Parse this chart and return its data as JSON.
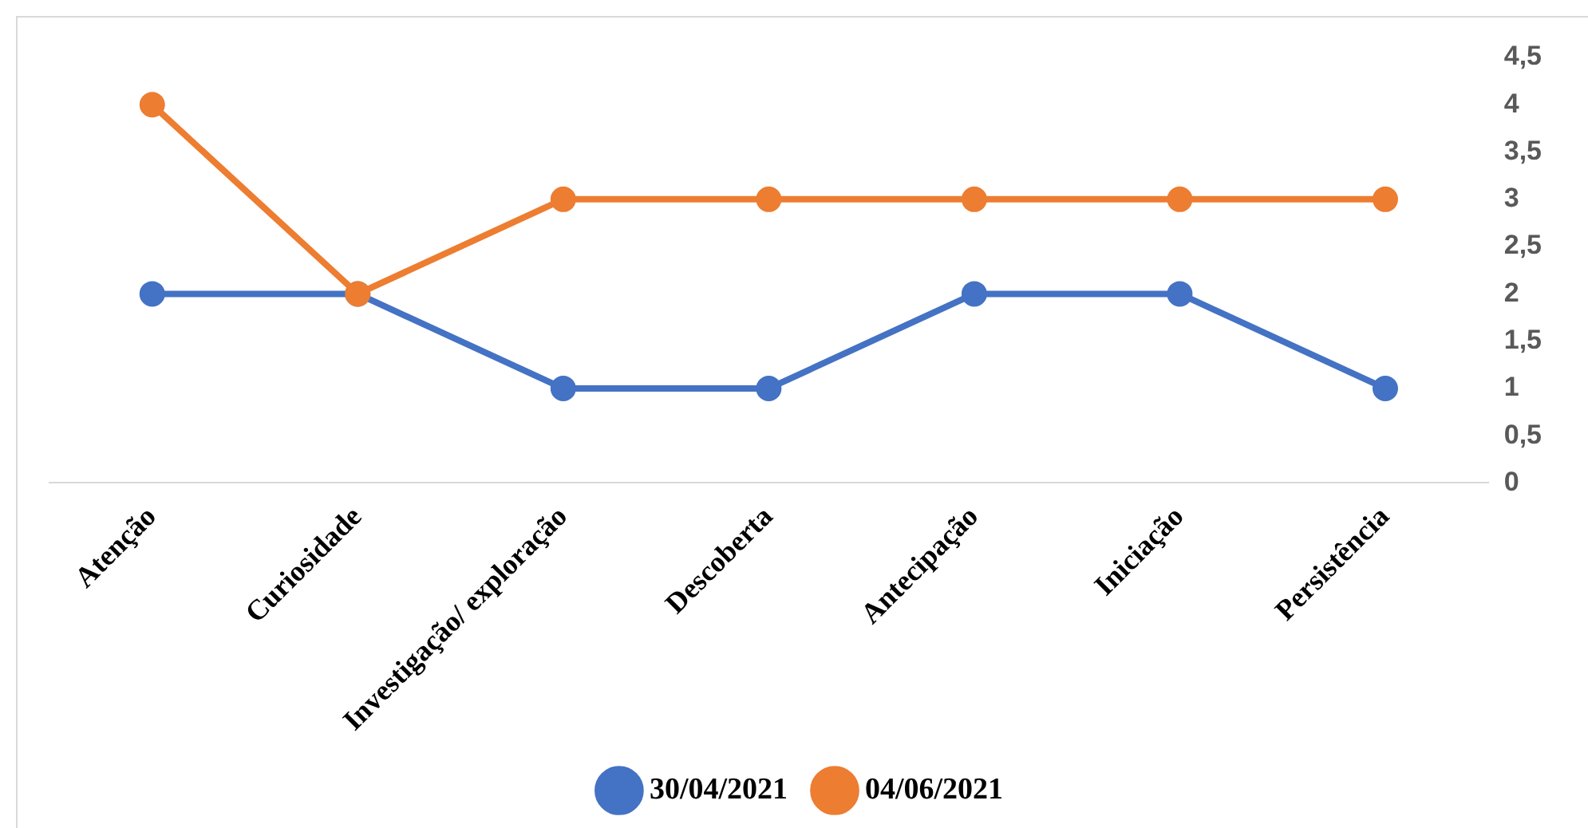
{
  "chart_data": {
    "type": "line",
    "categories": [
      "Atenção",
      "Curiosidade",
      "Investigação/ exploração",
      "Descoberta",
      "Antecipação",
      "Iniciação",
      "Persistência"
    ],
    "series": [
      {
        "name": "30/04/2021",
        "color": "#4472c4",
        "values": [
          2,
          2,
          1,
          1,
          2,
          2,
          1
        ]
      },
      {
        "name": "04/06/2021",
        "color": "#ed7d31",
        "values": [
          4,
          2,
          3,
          3,
          3,
          3,
          3
        ]
      }
    ],
    "ylim": [
      0,
      4.5
    ],
    "yticks": [
      0,
      {
        "value": 0.5,
        "label": "0,5"
      },
      1,
      {
        "value": 1.5,
        "label": "1,5"
      },
      2,
      {
        "value": 2.5,
        "label": "2,5"
      },
      3,
      {
        "value": 3.5,
        "label": "3,5"
      },
      4,
      {
        "value": 4.5,
        "label": "4,5"
      }
    ],
    "grid": false,
    "legend": "bottom",
    "marker": "circle",
    "line_style": "solid"
  }
}
